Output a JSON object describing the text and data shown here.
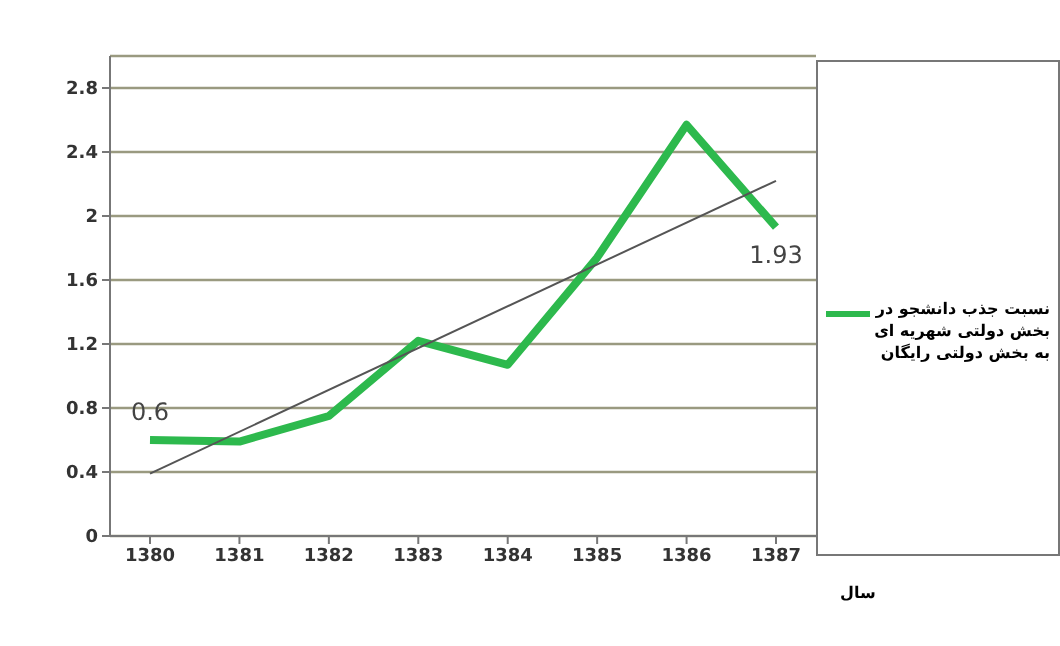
{
  "chart_data": {
    "type": "line",
    "xlabel": "سال",
    "categories": [
      "1380",
      "1381",
      "1382",
      "1383",
      "1384",
      "1385",
      "1386",
      "1387"
    ],
    "series": [
      {
        "name": "نسبت جذب دانشجو در بخش دولتی شهریه ای به بخش دولتی رایگان",
        "color": "#2db94d",
        "values": [
          0.6,
          0.59,
          0.75,
          1.22,
          1.07,
          1.74,
          2.57,
          1.93
        ],
        "value_labels": [
          "0.6",
          null,
          null,
          null,
          null,
          null,
          null,
          "1.93"
        ]
      },
      {
        "type": "line",
        "color": "#555555",
        "values": [
          0.39,
          null,
          null,
          null,
          null,
          null,
          null,
          2.22
        ]
      }
    ],
    "ylim": [
      0,
      3
    ],
    "yticks": [
      0,
      0.4,
      0.8,
      1.2,
      1.6,
      2,
      2.4,
      2.8
    ],
    "grid": "y",
    "legend": "right"
  }
}
